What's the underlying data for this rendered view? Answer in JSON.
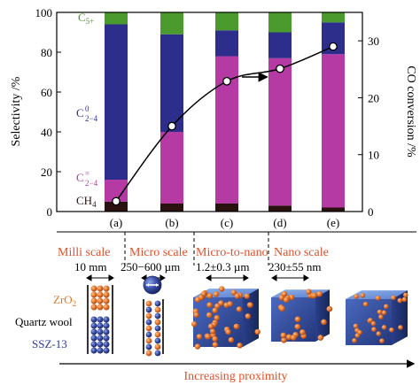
{
  "chart_data": {
    "type": "bar",
    "subtype": "stacked bar with line on secondary axis",
    "categories": [
      "(a)",
      "(b)",
      "(c)",
      "(d)",
      "(e)"
    ],
    "series": [
      {
        "name": "CH4",
        "values": [
          5,
          4,
          4,
          3,
          2
        ],
        "color": "#2a1210"
      },
      {
        "name": "C2-4=",
        "values": [
          11,
          36,
          74,
          74,
          77
        ],
        "color": "#b53aa4"
      },
      {
        "name": "C2-4 0",
        "values": [
          78,
          49,
          13,
          13,
          16
        ],
        "color": "#2d2d8c"
      },
      {
        "name": "C5+",
        "values": [
          6,
          11,
          9,
          10,
          5
        ],
        "color": "#4a9a2e"
      }
    ],
    "line_series": {
      "name": "CO conversion",
      "values": [
        1.8,
        15.0,
        22.9,
        25.1,
        29.0
      ],
      "marker": "open-circle"
    },
    "ylabel": "Selectivity /%",
    "y2label": "CO conversion /%",
    "ylim": [
      0,
      100
    ],
    "y2lim": [
      0,
      35
    ],
    "yticks": [
      0,
      20,
      40,
      60,
      80,
      100
    ],
    "y2ticks": [
      0,
      10,
      20,
      30
    ],
    "series_labels": {
      "c5": {
        "base": "C",
        "sub": "5+"
      },
      "c24p": {
        "base": "C",
        "sup": "0",
        "sub": "2−4"
      },
      "c24o": {
        "base": "C",
        "sup": "=",
        "sub": "2−4"
      },
      "ch4": {
        "base": "CH",
        "sub": "4"
      }
    },
    "arrow_annotation": "arrow pointing right toward secondary axis"
  },
  "scales": [
    {
      "title": "Milli scale",
      "size": "10 mm"
    },
    {
      "title": "Micro scale",
      "size": "250−600 µm"
    },
    {
      "title": "Micro-to-nano",
      "size": "1.2±0.3 µm"
    },
    {
      "title": "Nano scale",
      "size": "230±55 nm"
    }
  ],
  "legend": {
    "zro2": {
      "base": "ZrO",
      "sub": "2"
    },
    "quartz": "Quartz wool",
    "ssz": "SSZ-13"
  },
  "bottom_label": "Increasing proximity",
  "colors": {
    "ch4": "#2a1210",
    "c24_olefin": "#b53aa4",
    "c24_paraffin": "#2d2d8c",
    "c5": "#4a9a2e",
    "scale_title": "#e0502a",
    "zro2": "#e0782a",
    "ssz": "#2d3a9a",
    "sphere_orange": "#e8772e",
    "cube_blue": "#2f4ea0"
  }
}
